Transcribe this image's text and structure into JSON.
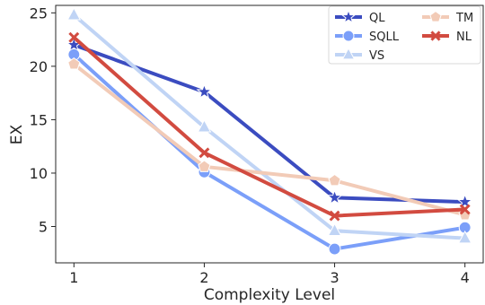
{
  "chart_data": {
    "type": "line",
    "x": [
      1,
      2,
      3,
      4
    ],
    "xlabel": "Complexity Level",
    "ylabel": "EX",
    "xlim": [
      0.86,
      4.14
    ],
    "ylim": [
      1.6,
      25.7
    ],
    "xticks": [
      "1",
      "2",
      "3",
      "4"
    ],
    "yticks": [
      "5",
      "10",
      "15",
      "20",
      "25"
    ],
    "ytick_values": [
      5,
      10,
      15,
      20,
      25
    ],
    "grid": false,
    "legend_position": "top-right",
    "series": [
      {
        "name": "QL",
        "values": [
          22.0,
          17.6,
          7.7,
          7.3
        ],
        "color": "#3b4cc0",
        "marker": "star"
      },
      {
        "name": "SQLL",
        "values": [
          21.1,
          10.1,
          2.9,
          4.9
        ],
        "color": "#7b9ff9",
        "marker": "circle"
      },
      {
        "name": "VS",
        "values": [
          24.8,
          14.3,
          4.6,
          3.9
        ],
        "color": "#c0d4f5",
        "marker": "triangle"
      },
      {
        "name": "TM",
        "values": [
          20.2,
          10.6,
          9.3,
          6.1
        ],
        "color": "#f2cbb7",
        "marker": "pentagon"
      },
      {
        "name": "NL",
        "values": [
          22.7,
          11.9,
          6.0,
          6.6
        ],
        "color": "#d24b40",
        "marker": "x"
      }
    ]
  }
}
